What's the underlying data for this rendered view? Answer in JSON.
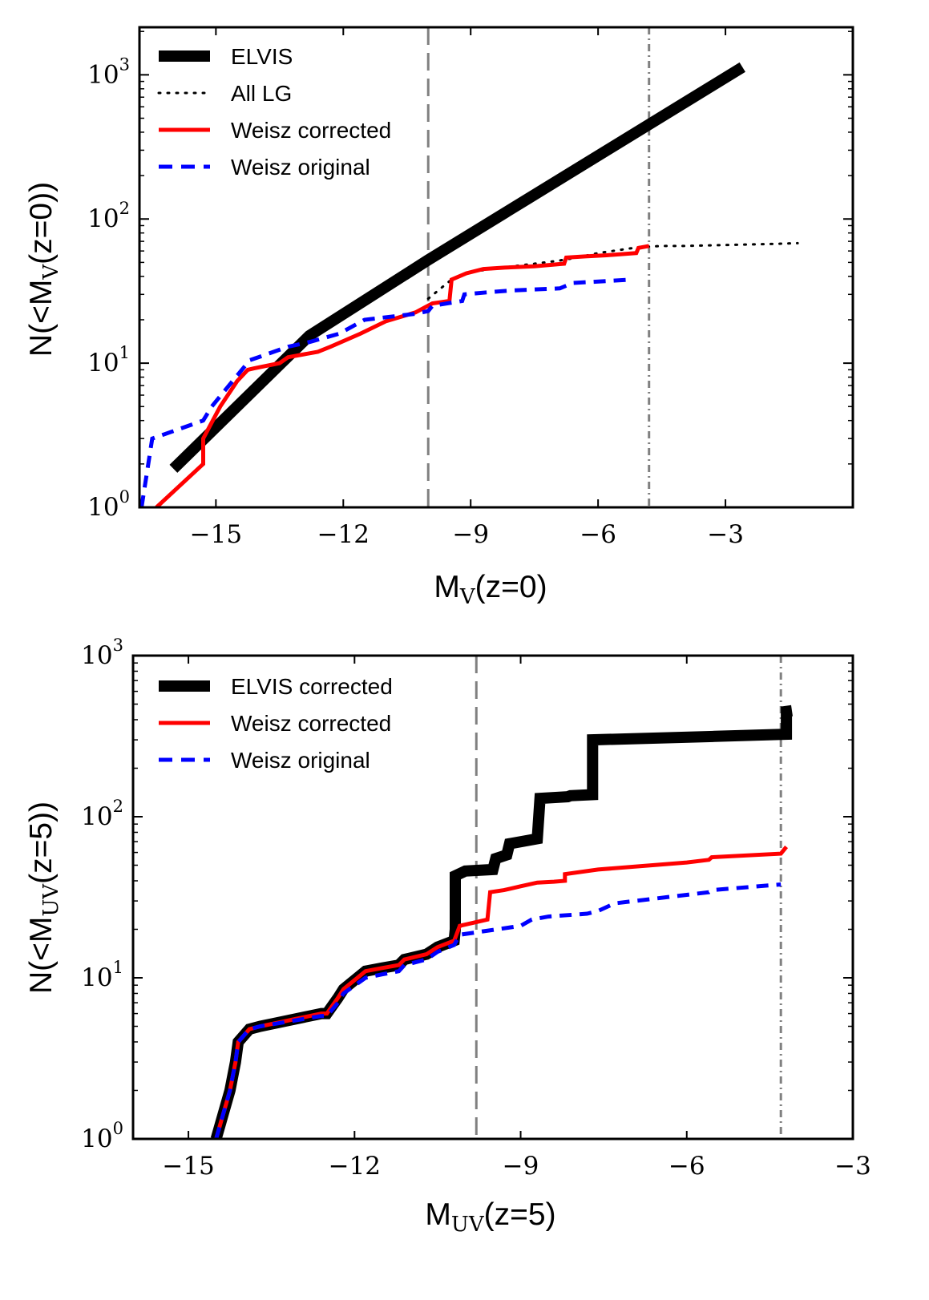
{
  "chart_data": [
    {
      "type": "line",
      "panel": "top",
      "xlabel": "MV(z=0)",
      "xlabel_main": "M",
      "xlabel_sub": "V",
      "xlabel_rest": "(z=0)",
      "ylabel": "N(<MV(z=0))",
      "ylabel_pre": "N(<M",
      "ylabel_sub": "V",
      "ylabel_rest": "(z=0))",
      "xlim": [
        -16.8,
        0
      ],
      "ylim_log10": [
        0,
        3.33
      ],
      "yscale": "log",
      "xticks": [
        -15,
        -12,
        -9,
        -6,
        -3
      ],
      "xtick_labels": [
        "−15",
        "−12",
        "−9",
        "−6",
        "−3"
      ],
      "yticks_log10": [
        0,
        1,
        2,
        3
      ],
      "ytick_labels": [
        {
          "base": "10",
          "exp": "0"
        },
        {
          "base": "10",
          "exp": "1"
        },
        {
          "base": "10",
          "exp": "2"
        },
        {
          "base": "10",
          "exp": "3"
        }
      ],
      "vlines": [
        {
          "x": -10.0,
          "style": "dashed",
          "color": "#808080"
        },
        {
          "x": -4.8,
          "style": "dashdot",
          "color": "#808080"
        }
      ],
      "legend_position": "top-left",
      "series": [
        {
          "name": "ELVIS",
          "color": "#000000",
          "style": "solid",
          "width": "thick",
          "x": [
            -16.0,
            -12.8,
            -10.0,
            -2.6
          ],
          "y": [
            1.85,
            15.5,
            52,
            1130
          ]
        },
        {
          "name": "All LG",
          "color": "#000000",
          "style": "dotted",
          "width": "thin",
          "x": [
            -10.0,
            -9.5,
            -9.0,
            -8.5,
            -8.0,
            -7.5,
            -7.0,
            -6.5,
            -6.0,
            -5.5,
            -5.0,
            -4.5,
            -4.0,
            -3.0,
            -2.0,
            -1.3
          ],
          "y": [
            28,
            37,
            43,
            45,
            47,
            49,
            51,
            54,
            58,
            61,
            64,
            65,
            65,
            66,
            67,
            68
          ]
        },
        {
          "name": "Weisz corrected",
          "color": "#ff0000",
          "style": "solid",
          "width": "medium",
          "x": [
            -16.4,
            -15.3,
            -15.3,
            -14.9,
            -14.5,
            -14.25,
            -14.1,
            -13.5,
            -13.3,
            -12.6,
            -12.3,
            -11.6,
            -11.0,
            -10.3,
            -9.9,
            -9.5,
            -9.45,
            -9.1,
            -8.7,
            -8.2,
            -7.5,
            -6.8,
            -6.75,
            -6.3,
            -5.8,
            -5.1,
            -5.05,
            -4.8
          ],
          "y": [
            1.0,
            2.0,
            3.0,
            5.0,
            7.5,
            9.0,
            9.2,
            10.0,
            11.0,
            12.0,
            13.0,
            16.0,
            19.5,
            22.5,
            26.0,
            27.0,
            38.0,
            42.0,
            45.0,
            46.0,
            47.0,
            49.0,
            54.0,
            55.0,
            56.0,
            58.0,
            63.0,
            65.0
          ]
        },
        {
          "name": "Weisz original",
          "color": "#0000ff",
          "style": "dashed",
          "width": "medium",
          "x": [
            -16.75,
            -16.5,
            -15.3,
            -15.1,
            -14.2,
            -14.0,
            -13.3,
            -12.8,
            -12.1,
            -11.5,
            -10.3,
            -10.0,
            -9.9,
            -9.2,
            -9.15,
            -8.6,
            -8.0,
            -6.9,
            -6.6,
            -5.2
          ],
          "y": [
            1.0,
            3.0,
            4.0,
            5.0,
            10.5,
            11.0,
            13.0,
            14.0,
            16.0,
            20.0,
            22.0,
            23.0,
            25.0,
            27.0,
            30.0,
            31.0,
            32.0,
            33.0,
            36.0,
            38.0
          ]
        }
      ]
    },
    {
      "type": "line",
      "panel": "bottom",
      "xlabel": "MUV(z=5)",
      "xlabel_main": "M",
      "xlabel_sub": "UV",
      "xlabel_rest": "(z=5)",
      "ylabel": "N(<MUV(z=5))",
      "ylabel_pre": "N(<M",
      "ylabel_sub": "UV",
      "ylabel_rest": "(z=5))",
      "xlim": [
        -16,
        -3
      ],
      "ylim_log10": [
        0,
        3
      ],
      "yscale": "log",
      "xticks": [
        -15,
        -12,
        -9,
        -6,
        -3
      ],
      "xtick_labels": [
        "−15",
        "−12",
        "−9",
        "−6",
        "−3"
      ],
      "yticks_log10": [
        0,
        1,
        2,
        3
      ],
      "ytick_labels": [
        {
          "base": "10",
          "exp": "0"
        },
        {
          "base": "10",
          "exp": "1"
        },
        {
          "base": "10",
          "exp": "2"
        },
        {
          "base": "10",
          "exp": "3"
        }
      ],
      "vlines": [
        {
          "x": -9.8,
          "style": "dashed",
          "color": "#808080"
        },
        {
          "x": -4.3,
          "style": "dashdot",
          "color": "#808080"
        }
      ],
      "legend_position": "top-left",
      "series": [
        {
          "name": "ELVIS corrected",
          "color": "#000000",
          "style": "solid",
          "width": "thick",
          "x": [
            -14.5,
            -14.25,
            -14.15,
            -14.1,
            -13.9,
            -13.7,
            -12.6,
            -12.5,
            -12.3,
            -12.2,
            -11.8,
            -11.5,
            -11.2,
            -11.1,
            -10.7,
            -10.5,
            -10.2,
            -10.18,
            -10.18,
            -10.0,
            -9.5,
            -9.45,
            -9.25,
            -9.2,
            -8.7,
            -8.65,
            -8.15,
            -8.1,
            -7.7,
            -7.7,
            -5.5,
            -4.2,
            -4.2,
            -4.1
          ],
          "y": [
            1.0,
            2.0,
            3.0,
            4.0,
            4.8,
            5.0,
            6.0,
            6.0,
            7.5,
            8.5,
            11.0,
            11.5,
            12.0,
            13.0,
            14.0,
            15.5,
            17.0,
            20.0,
            43.0,
            46.0,
            47.0,
            55.0,
            58.0,
            68.0,
            73.0,
            130.0,
            133.0,
            135.0,
            137.0,
            300.0,
            315.0,
            325.0,
            450.0,
            455.0
          ]
        },
        {
          "name": "Weisz corrected",
          "color": "#ff0000",
          "style": "solid",
          "width": "medium",
          "x": [
            -14.5,
            -14.25,
            -14.15,
            -14.1,
            -13.9,
            -13.7,
            -12.6,
            -12.5,
            -12.3,
            -12.2,
            -11.8,
            -11.5,
            -11.2,
            -11.1,
            -10.7,
            -10.5,
            -10.2,
            -10.1,
            -9.6,
            -9.55,
            -9.3,
            -9.0,
            -8.7,
            -8.4,
            -8.2,
            -8.2,
            -7.6,
            -6.0,
            -5.6,
            -5.55,
            -4.3,
            -4.2
          ],
          "y": [
            1.0,
            2.0,
            3.0,
            4.0,
            4.8,
            5.0,
            6.0,
            6.0,
            7.5,
            8.5,
            11.0,
            11.5,
            12.0,
            13.0,
            14.0,
            15.5,
            17.0,
            21.0,
            23.0,
            34.0,
            35.0,
            37.0,
            39.0,
            39.5,
            40.0,
            44.0,
            47.0,
            52.0,
            54.0,
            56.0,
            59.0,
            65.0
          ]
        },
        {
          "name": "Weisz original",
          "color": "#0000ff",
          "style": "dashed",
          "width": "medium",
          "x": [
            -14.5,
            -14.25,
            -14.15,
            -14.1,
            -13.9,
            -13.7,
            -12.6,
            -12.5,
            -12.3,
            -12.2,
            -11.8,
            -11.5,
            -11.2,
            -11.1,
            -10.7,
            -10.5,
            -10.2,
            -10.1,
            -9.0,
            -8.8,
            -8.5,
            -7.8,
            -7.6,
            -7.3,
            -5.6,
            -5.55,
            -4.3
          ],
          "y": [
            1.0,
            2.0,
            3.0,
            4.0,
            4.8,
            5.0,
            5.8,
            5.8,
            7.0,
            8.0,
            10.0,
            10.5,
            11.0,
            12.0,
            13.0,
            14.5,
            16.0,
            18.5,
            21.0,
            23.0,
            24.0,
            25.0,
            26.0,
            29.0,
            34.0,
            35.0,
            38.0
          ]
        }
      ]
    }
  ]
}
